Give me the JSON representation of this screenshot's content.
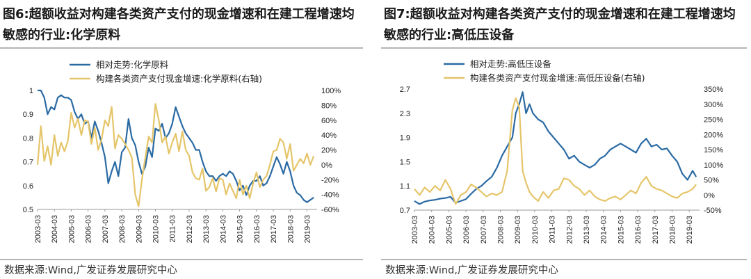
{
  "charts": [
    {
      "fig_label": "图6:",
      "title": "超额收益对构建各类资产支付的现金增速和在建工程增速均敏感的行业:化学原料",
      "source": "数据来源:Wind,广发证券发展研究中心"
    },
    {
      "fig_label": "图7:",
      "title": "超额收益对构建各类资产支付的现金增速和在建工程增速均敏感的行业:高低压设备",
      "source": "数据来源:Wind,广发证券发展研究中心"
    }
  ],
  "chart_data": [
    {
      "type": "line",
      "title": "图6:超额收益对构建各类资产支付的现金增速和在建工程增速均敏感的行业:化学原料",
      "x_tick_labels": [
        "2003-03",
        "2004-03",
        "2005-03",
        "2006-03",
        "2007-03",
        "2008-03",
        "2009-03",
        "2010-03",
        "2011-03",
        "2012-03",
        "2013-03",
        "2014-03",
        "2015-03",
        "2016-03",
        "2017-03",
        "2018-03",
        "2019-03"
      ],
      "x_range": [
        2003.0,
        2019.6
      ],
      "y_left": {
        "range": [
          0.5,
          1.0
        ],
        "ticks": [
          "0.5",
          "0.6",
          "0.7",
          "0.8",
          "0.9",
          "1"
        ]
      },
      "y_right": {
        "range": [
          -60,
          100
        ],
        "unit": "%",
        "ticks": [
          "-60%",
          "-40%",
          "-20%",
          "0%",
          "20%",
          "40%",
          "60%",
          "80%",
          "100%"
        ]
      },
      "legend_position": "top-left",
      "series": [
        {
          "name": "相对走势:化学原料",
          "color": "#2a6aa3",
          "axis": "left",
          "x": [
            2003.0,
            2003.2,
            2003.4,
            2003.6,
            2003.8,
            2004.0,
            2004.2,
            2004.4,
            2004.6,
            2004.8,
            2005.0,
            2005.2,
            2005.4,
            2005.6,
            2005.8,
            2006.0,
            2006.2,
            2006.4,
            2006.6,
            2006.8,
            2007.0,
            2007.2,
            2007.4,
            2007.6,
            2007.8,
            2008.0,
            2008.2,
            2008.4,
            2008.6,
            2008.8,
            2009.0,
            2009.2,
            2009.4,
            2009.6,
            2009.8,
            2010.0,
            2010.2,
            2010.4,
            2010.6,
            2010.8,
            2011.0,
            2011.2,
            2011.4,
            2011.6,
            2011.8,
            2012.0,
            2012.2,
            2012.4,
            2012.6,
            2012.8,
            2013.0,
            2013.2,
            2013.4,
            2013.6,
            2013.8,
            2014.0,
            2014.2,
            2014.4,
            2014.6,
            2014.8,
            2015.0,
            2015.2,
            2015.4,
            2015.6,
            2015.8,
            2016.0,
            2016.2,
            2016.4,
            2016.6,
            2016.8,
            2017.0,
            2017.2,
            2017.4,
            2017.6,
            2017.8,
            2018.0,
            2018.2,
            2018.4,
            2018.6,
            2018.8,
            2019.0,
            2019.2,
            2019.4
          ],
          "values": [
            1.0,
            1.0,
            0.97,
            0.9,
            0.93,
            0.92,
            0.97,
            0.98,
            0.97,
            0.97,
            0.96,
            0.91,
            0.88,
            0.9,
            0.86,
            0.87,
            0.8,
            0.87,
            0.83,
            0.78,
            0.72,
            0.61,
            0.66,
            0.7,
            0.64,
            0.74,
            0.76,
            0.88,
            0.8,
            0.77,
            0.7,
            0.65,
            0.68,
            0.76,
            0.72,
            0.84,
            0.83,
            0.86,
            0.8,
            0.82,
            0.86,
            0.93,
            0.89,
            0.85,
            0.82,
            0.8,
            0.78,
            0.75,
            0.75,
            0.7,
            0.66,
            0.64,
            0.64,
            0.62,
            0.64,
            0.65,
            0.64,
            0.66,
            0.65,
            0.62,
            0.58,
            0.6,
            0.56,
            0.6,
            0.62,
            0.62,
            0.64,
            0.6,
            0.61,
            0.64,
            0.68,
            0.72,
            0.69,
            0.65,
            0.7,
            0.66,
            0.6,
            0.57,
            0.56,
            0.54,
            0.53,
            0.54,
            0.55
          ]
        },
        {
          "name": "构建各类资产支付现金增速:化学原料(右轴)",
          "color": "#e5c56a",
          "axis": "right",
          "x": [
            2003.0,
            2003.2,
            2003.4,
            2003.6,
            2003.8,
            2004.0,
            2004.2,
            2004.4,
            2004.6,
            2004.8,
            2005.0,
            2005.2,
            2005.4,
            2005.6,
            2005.8,
            2006.0,
            2006.2,
            2006.4,
            2006.6,
            2006.8,
            2007.0,
            2007.2,
            2007.4,
            2007.6,
            2007.8,
            2008.0,
            2008.2,
            2008.4,
            2008.6,
            2008.8,
            2009.0,
            2009.2,
            2009.4,
            2009.6,
            2009.8,
            2010.0,
            2010.2,
            2010.4,
            2010.6,
            2010.8,
            2011.0,
            2011.2,
            2011.4,
            2011.6,
            2011.8,
            2012.0,
            2012.2,
            2012.4,
            2012.6,
            2012.8,
            2013.0,
            2013.2,
            2013.4,
            2013.6,
            2013.8,
            2014.0,
            2014.2,
            2014.4,
            2014.6,
            2014.8,
            2015.0,
            2015.2,
            2015.4,
            2015.6,
            2015.8,
            2016.0,
            2016.2,
            2016.4,
            2016.6,
            2016.8,
            2017.0,
            2017.2,
            2017.4,
            2017.6,
            2017.8,
            2018.0,
            2018.2,
            2018.4,
            2018.6,
            2018.8,
            2019.0,
            2019.2,
            2019.4
          ],
          "values": [
            0,
            52,
            5,
            25,
            0,
            40,
            12,
            30,
            18,
            32,
            70,
            50,
            62,
            40,
            60,
            58,
            28,
            50,
            20,
            34,
            60,
            52,
            78,
            22,
            40,
            35,
            28,
            20,
            10,
            -40,
            -56,
            -20,
            10,
            38,
            30,
            82,
            60,
            30,
            38,
            15,
            30,
            42,
            18,
            45,
            20,
            12,
            -10,
            -18,
            -20,
            -5,
            -35,
            -30,
            -18,
            -36,
            -18,
            -20,
            -40,
            -25,
            -35,
            -45,
            -20,
            -40,
            -28,
            -45,
            -25,
            -10,
            -30,
            -20,
            -15,
            0,
            18,
            20,
            35,
            30,
            8,
            28,
            -8,
            0,
            8,
            2,
            15,
            0,
            12
          ]
        }
      ]
    },
    {
      "type": "line",
      "title": "图7:超额收益对构建各类资产支付的现金增速和在建工程增速均敏感的行业:高低压设备",
      "x_tick_labels": [
        "2003-03",
        "2004-03",
        "2005-03",
        "2006-03",
        "2007-03",
        "2008-03",
        "2009-03",
        "2010-03",
        "2011-03",
        "2012-03",
        "2013-03",
        "2014-03",
        "2015-03",
        "2016-03",
        "2017-03",
        "2018-03",
        "2019-03"
      ],
      "x_range": [
        2003.0,
        2019.6
      ],
      "y_left": {
        "range": [
          0.7,
          2.7
        ],
        "ticks": [
          "0.7",
          "1.1",
          "1.5",
          "1.9",
          "2.3",
          "2.7"
        ]
      },
      "y_right": {
        "range": [
          -50,
          350
        ],
        "unit": "%",
        "ticks": [
          "-50%",
          "0%",
          "50%",
          "100%",
          "150%",
          "200%",
          "250%",
          "300%",
          "350%"
        ]
      },
      "legend_position": "top-left",
      "series": [
        {
          "name": "相对走势:高低压设备",
          "color": "#2a6aa3",
          "axis": "left",
          "x": [
            2003.0,
            2003.3,
            2003.6,
            2003.9,
            2004.2,
            2004.5,
            2004.8,
            2005.1,
            2005.4,
            2005.7,
            2006.0,
            2006.3,
            2006.6,
            2006.9,
            2007.2,
            2007.5,
            2007.8,
            2008.1,
            2008.4,
            2008.7,
            2008.9,
            2009.1,
            2009.3,
            2009.5,
            2009.7,
            2009.9,
            2010.2,
            2010.5,
            2010.8,
            2011.1,
            2011.4,
            2011.7,
            2012.0,
            2012.3,
            2012.6,
            2012.9,
            2013.2,
            2013.5,
            2013.8,
            2014.1,
            2014.4,
            2014.7,
            2015.0,
            2015.3,
            2015.6,
            2015.9,
            2016.2,
            2016.5,
            2016.8,
            2017.1,
            2017.4,
            2017.7,
            2018.0,
            2018.3,
            2018.6,
            2018.9,
            2019.2,
            2019.4
          ],
          "values": [
            0.85,
            0.8,
            0.84,
            0.86,
            0.87,
            0.89,
            0.9,
            0.92,
            0.82,
            0.85,
            0.88,
            0.97,
            1.05,
            1.1,
            1.18,
            1.25,
            1.4,
            1.6,
            1.75,
            1.9,
            2.3,
            2.45,
            2.65,
            2.3,
            2.45,
            2.3,
            2.2,
            2.15,
            2.0,
            1.9,
            1.8,
            1.7,
            1.55,
            1.6,
            1.5,
            1.45,
            1.4,
            1.45,
            1.55,
            1.6,
            1.7,
            1.75,
            1.8,
            1.75,
            1.7,
            1.65,
            1.8,
            1.88,
            1.75,
            1.78,
            1.7,
            1.72,
            1.6,
            1.5,
            1.3,
            1.2,
            1.35,
            1.25
          ]
        },
        {
          "name": "构建各类资产支付现金增速:高低压设备(右轴)",
          "color": "#e5c56a",
          "axis": "right",
          "x": [
            2003.0,
            2003.3,
            2003.6,
            2003.9,
            2004.2,
            2004.5,
            2004.8,
            2005.1,
            2005.4,
            2005.7,
            2006.0,
            2006.3,
            2006.6,
            2006.9,
            2007.2,
            2007.5,
            2007.8,
            2008.1,
            2008.4,
            2008.7,
            2008.9,
            2009.1,
            2009.3,
            2009.5,
            2009.7,
            2009.9,
            2010.2,
            2010.5,
            2010.8,
            2011.1,
            2011.4,
            2011.7,
            2012.0,
            2012.3,
            2012.6,
            2012.9,
            2013.2,
            2013.5,
            2013.8,
            2014.1,
            2014.4,
            2014.7,
            2015.0,
            2015.3,
            2015.6,
            2015.9,
            2016.2,
            2016.5,
            2016.8,
            2017.1,
            2017.4,
            2017.7,
            2018.0,
            2018.3,
            2018.6,
            2018.9,
            2019.2,
            2019.4
          ],
          "values": [
            20,
            0,
            25,
            10,
            30,
            15,
            50,
            20,
            -30,
            0,
            10,
            35,
            25,
            10,
            -5,
            5,
            0,
            10,
            80,
            280,
            320,
            290,
            80,
            40,
            10,
            -5,
            -20,
            10,
            -10,
            15,
            20,
            55,
            50,
            30,
            20,
            0,
            15,
            -5,
            -15,
            -20,
            -10,
            -5,
            -15,
            0,
            15,
            5,
            40,
            60,
            30,
            20,
            15,
            5,
            -5,
            -10,
            5,
            10,
            20,
            35
          ]
        }
      ]
    }
  ]
}
